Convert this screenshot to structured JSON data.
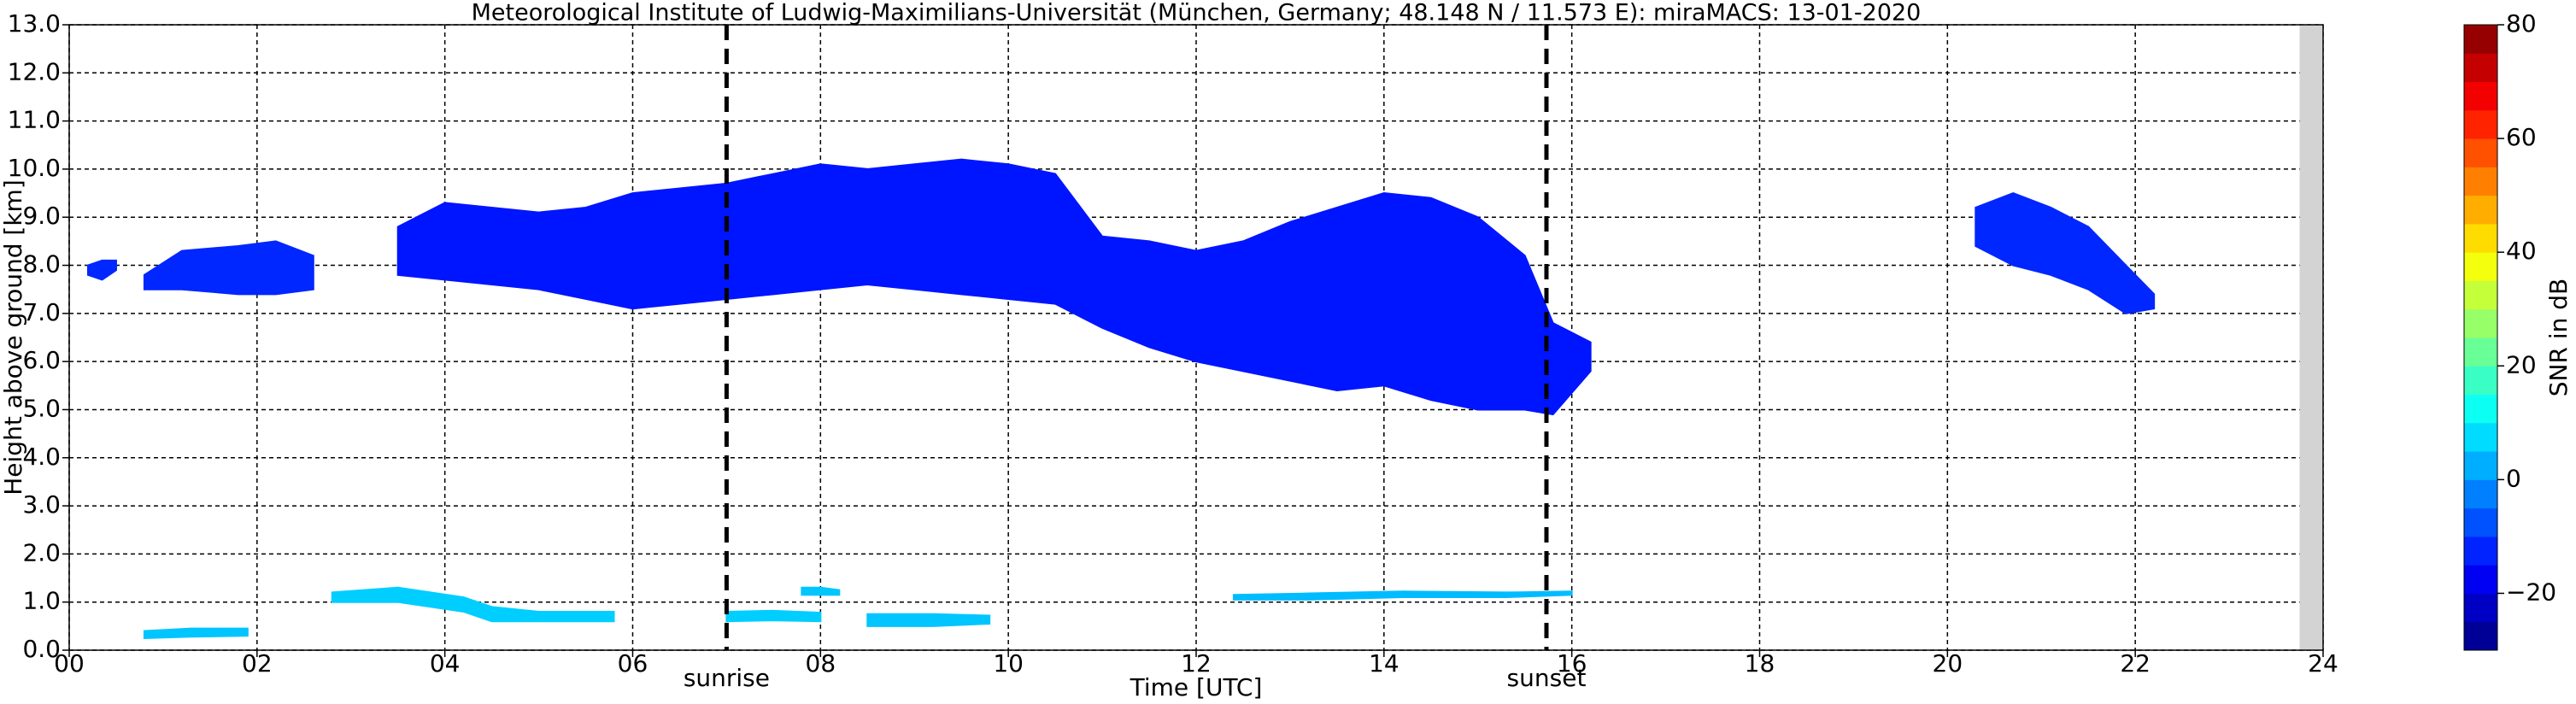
{
  "chart_data": {
    "type": "range-area",
    "title": "Meteorological Institute of Ludwig-Maximilians-Universität (München, Germany; 48.148 N / 11.573 E):    miraMACS: 13-01-2020",
    "xlabel": "Time [UTC]",
    "ylabel": "Height above ground [km]",
    "colorbar_label": "SNR in dB",
    "colormap": "jet",
    "grid": true,
    "xlim": [
      0,
      24
    ],
    "ylim": [
      0,
      13
    ],
    "xticks": [
      {
        "value": 0,
        "label": "00"
      },
      {
        "value": 2,
        "label": "02"
      },
      {
        "value": 4,
        "label": "04"
      },
      {
        "value": 6,
        "label": "06"
      },
      {
        "value": 8,
        "label": "08"
      },
      {
        "value": 10,
        "label": "10"
      },
      {
        "value": 12,
        "label": "12"
      },
      {
        "value": 14,
        "label": "14"
      },
      {
        "value": 16,
        "label": "16"
      },
      {
        "value": 18,
        "label": "18"
      },
      {
        "value": 20,
        "label": "20"
      },
      {
        "value": 22,
        "label": "22"
      },
      {
        "value": 24,
        "label": "24"
      }
    ],
    "yticks": [
      {
        "value": 0,
        "label": "0.0"
      },
      {
        "value": 1,
        "label": "1.0"
      },
      {
        "value": 2,
        "label": "2.0"
      },
      {
        "value": 3,
        "label": "3.0"
      },
      {
        "value": 4,
        "label": "4.0"
      },
      {
        "value": 5,
        "label": "5.0"
      },
      {
        "value": 6,
        "label": "6.0"
      },
      {
        "value": 7,
        "label": "7.0"
      },
      {
        "value": 8,
        "label": "8.0"
      },
      {
        "value": 9,
        "label": "9.0"
      },
      {
        "value": 10,
        "label": "10.0"
      },
      {
        "value": 11,
        "label": "11.0"
      },
      {
        "value": 12,
        "label": "12.0"
      },
      {
        "value": 13,
        "label": "13.0"
      }
    ],
    "clim": [
      -30,
      80
    ],
    "cticks": [
      {
        "value": -20,
        "label": "−20"
      },
      0,
      20,
      40,
      60,
      80
    ],
    "nodata": [
      23.75,
      24
    ],
    "annotations": [
      {
        "x": 7.0,
        "label": "sunrise"
      },
      {
        "x": 15.73,
        "label": "sunset"
      }
    ],
    "series": [
      {
        "x": [
          0.2,
          0.35,
          0.5
        ],
        "base": [
          7.8,
          7.7,
          7.9
        ],
        "top": [
          8.0,
          8.1,
          8.1
        ],
        "snr": -12
      },
      {
        "x": [
          0.8,
          1.2,
          1.8,
          2.2,
          2.6
        ],
        "base": [
          7.5,
          7.5,
          7.4,
          7.4,
          7.5
        ],
        "top": [
          7.8,
          8.3,
          8.4,
          8.5,
          8.2
        ],
        "snr": -12
      },
      {
        "x": [
          3.5,
          4,
          5,
          5.5,
          6,
          6.5,
          7,
          7.5,
          8,
          8.5,
          9,
          9.5,
          10,
          10.5,
          11,
          11.5,
          12,
          12.5,
          13,
          13.5,
          14,
          14.5,
          15,
          15.5,
          15.8,
          16.2
        ],
        "base": [
          7.8,
          7.7,
          7.5,
          7.3,
          7.1,
          7.2,
          7.3,
          7.4,
          7.5,
          7.6,
          7.5,
          7.4,
          7.3,
          7.2,
          6.7,
          6.3,
          6.0,
          5.8,
          5.6,
          5.4,
          5.5,
          5.2,
          5.0,
          5.0,
          4.9,
          5.8
        ],
        "top": [
          8.8,
          9.3,
          9.1,
          9.2,
          9.5,
          9.6,
          9.7,
          9.9,
          10.1,
          10.0,
          10.1,
          10.2,
          10.1,
          9.9,
          8.6,
          8.5,
          8.3,
          8.5,
          8.9,
          9.2,
          9.5,
          9.4,
          9.0,
          8.2,
          6.8,
          6.4
        ],
        "snr": -14
      },
      {
        "x": [
          20.3,
          20.7,
          21.1,
          21.5,
          21.9,
          22.2
        ],
        "base": [
          8.4,
          8.0,
          7.8,
          7.5,
          7.0,
          7.1
        ],
        "top": [
          9.2,
          9.5,
          9.2,
          8.8,
          8.0,
          7.4
        ],
        "snr": -12
      },
      {
        "x": [
          0.8,
          1.3,
          1.9
        ],
        "base": [
          0.25,
          0.28,
          0.3
        ],
        "top": [
          0.4,
          0.45,
          0.45
        ],
        "snr": 5
      },
      {
        "x": [
          2.8,
          3.5,
          4.2,
          4.5,
          5,
          5.8
        ],
        "base": [
          1.0,
          1.0,
          0.8,
          0.6,
          0.6,
          0.6
        ],
        "top": [
          1.2,
          1.3,
          1.1,
          0.9,
          0.8,
          0.8
        ],
        "snr": 6
      },
      {
        "x": [
          7.0,
          7.5,
          8.0
        ],
        "base": [
          0.6,
          0.62,
          0.6
        ],
        "top": [
          0.8,
          0.82,
          0.78
        ],
        "snr": 6
      },
      {
        "x": [
          7.8,
          8.0,
          8.2
        ],
        "base": [
          1.15,
          1.15,
          1.15
        ],
        "top": [
          1.3,
          1.3,
          1.25
        ],
        "snr": 5
      },
      {
        "x": [
          8.5,
          9.2,
          9.8
        ],
        "base": [
          0.5,
          0.5,
          0.55
        ],
        "top": [
          0.75,
          0.75,
          0.72
        ],
        "snr": 5
      },
      {
        "x": [
          12.4,
          13.2,
          14.2,
          15.3,
          16.0
        ],
        "base": [
          1.05,
          1.05,
          1.1,
          1.1,
          1.15
        ],
        "top": [
          1.15,
          1.18,
          1.22,
          1.2,
          1.22
        ],
        "snr": 4
      }
    ]
  }
}
